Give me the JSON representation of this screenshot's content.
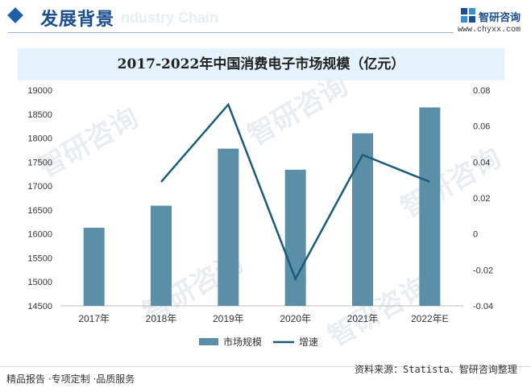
{
  "header": {
    "title": "发展背景",
    "bg_text": "ndustry Chain"
  },
  "logo": {
    "name": "智研咨询",
    "url": "www.chyxx.com"
  },
  "watermark": {
    "text": "智研咨询"
  },
  "chart_data": {
    "type": "bar",
    "title": "2017-2022年中国消费电子市场规模（亿元）",
    "categories": [
      "2017年",
      "2018年",
      "2019年",
      "2020年",
      "2021年",
      "2022年E"
    ],
    "series": [
      {
        "name": "市场规模",
        "type": "bar",
        "axis": "left",
        "color": "#5b8fa8",
        "values": [
          16130,
          16590,
          17780,
          17340,
          18100,
          18640
        ]
      },
      {
        "name": "增速",
        "type": "line",
        "axis": "right",
        "color": "#1c5b78",
        "values": [
          null,
          0.029,
          0.072,
          -0.025,
          0.044,
          0.029
        ]
      }
    ],
    "left_axis": {
      "min": 14500,
      "max": 19000,
      "ticks": [
        14500,
        15000,
        15500,
        16000,
        16500,
        17000,
        17500,
        18000,
        18500,
        19000
      ]
    },
    "right_axis": {
      "min": -0.04,
      "max": 0.08,
      "ticks": [
        "-0.04",
        "-0.02",
        "0",
        "0.02",
        "0.04",
        "0.06",
        "0.08"
      ],
      "tick_values": [
        -0.04,
        -0.02,
        0,
        0.02,
        0.04,
        0.06,
        0.08
      ]
    },
    "legend_position": "bottom-center",
    "grid": false
  },
  "footer": {
    "left": "精品报告 ·专项定制 ·品质服务",
    "source": "资料来源：Statista、智研咨询整理"
  }
}
